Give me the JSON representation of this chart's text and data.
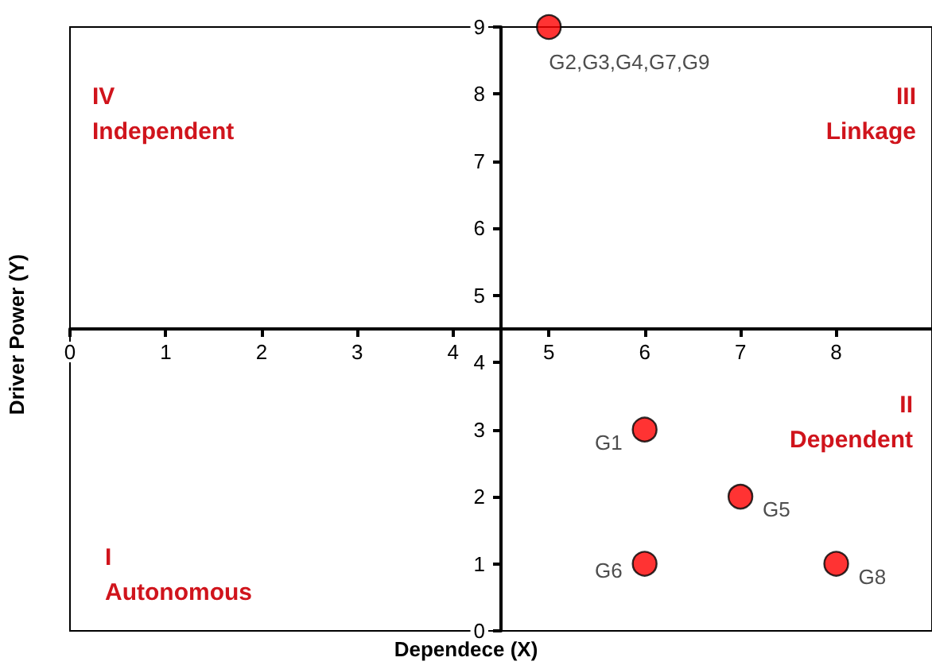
{
  "chart_data": {
    "type": "scatter",
    "xlabel": "Dependece (X)",
    "ylabel": "Driver Power (Y)",
    "x": [
      5,
      6,
      7,
      6,
      8
    ],
    "series": [
      {
        "color": "#ff0000",
        "values": [
          9,
          3,
          2,
          1,
          1
        ]
      }
    ],
    "marker": "circle",
    "xlim": [
      0,
      9
    ],
    "ylim": [
      0,
      9
    ],
    "xticks": [
      0,
      1,
      2,
      3,
      4,
      5,
      6,
      7,
      8
    ],
    "yticks": [
      0,
      1,
      2,
      3,
      4,
      5,
      6,
      7,
      8,
      9
    ],
    "annotations": [
      {
        "text": "G2,G3,G4,G7,G9",
        "x": 5,
        "y": 9
      },
      {
        "text": "G1",
        "x": 6,
        "y": 3
      },
      {
        "text": "G5",
        "x": 7,
        "y": 2
      },
      {
        "text": "G6",
        "x": 6,
        "y": 1
      },
      {
        "text": "G8",
        "x": 8,
        "y": 1
      },
      "IV\nIndependent",
      "III\nLinkage",
      "II\nDependent",
      "I\nAutonomous"
    ],
    "grid": false
  }
}
